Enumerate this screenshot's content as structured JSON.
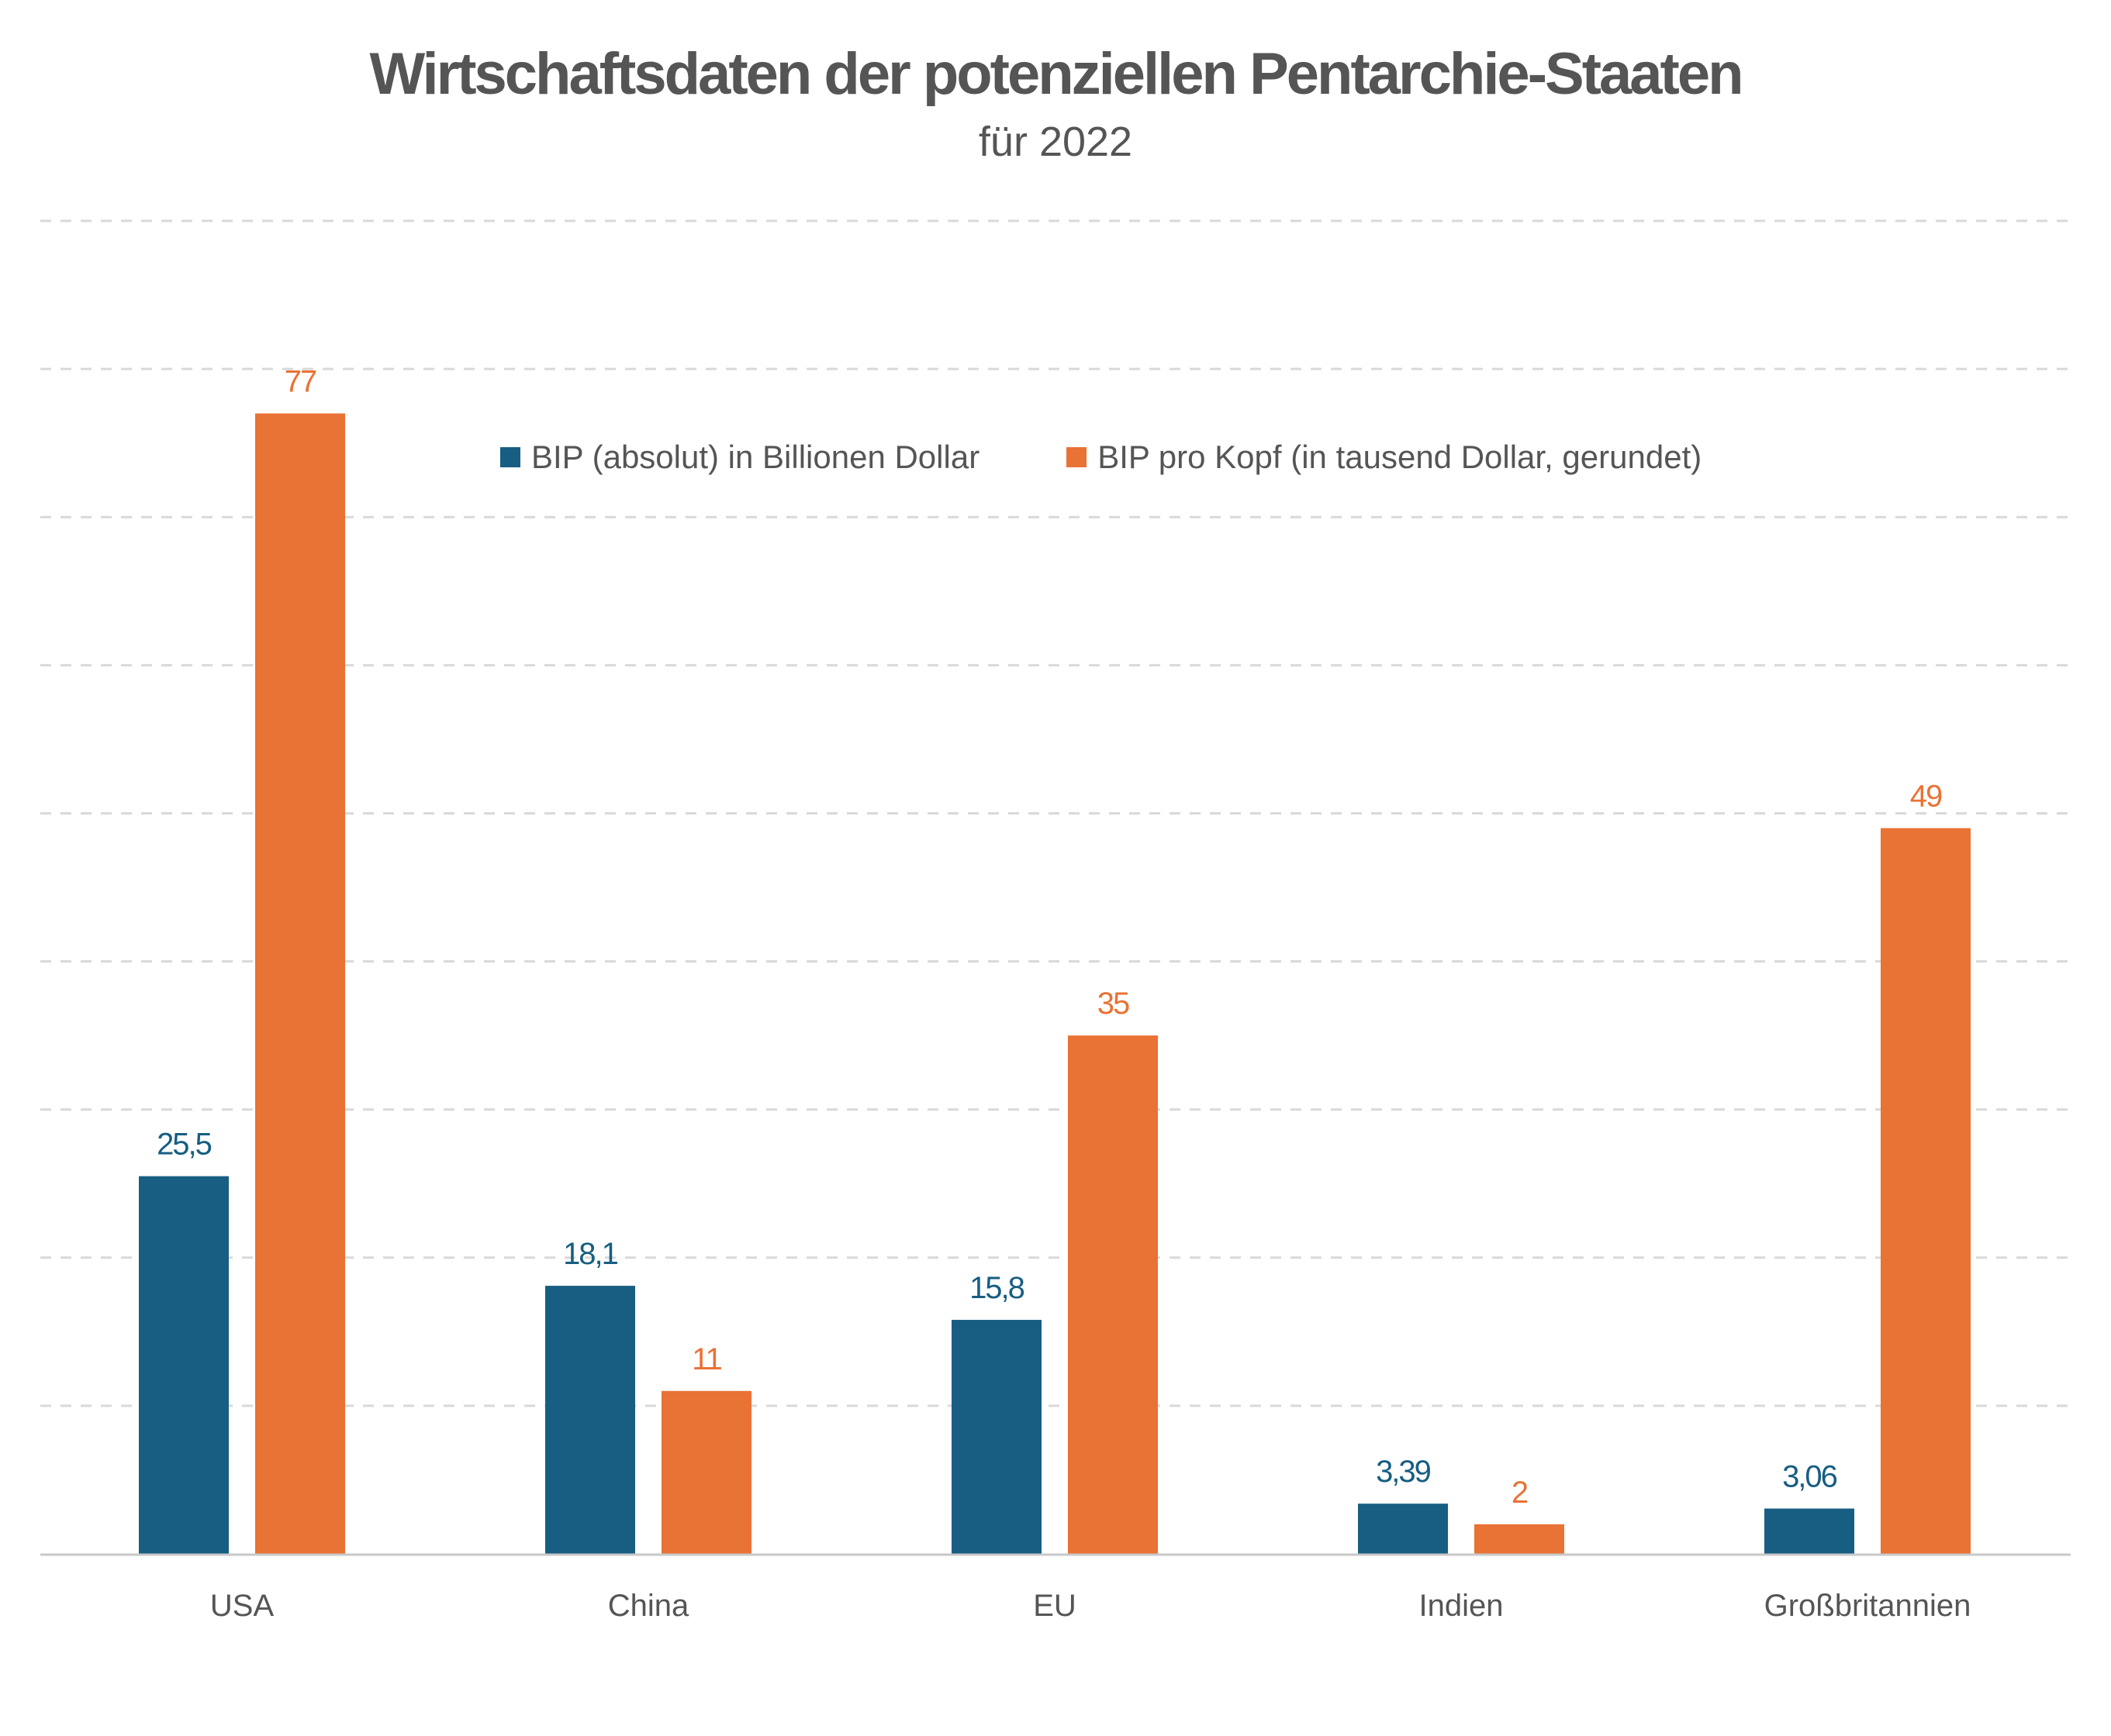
{
  "chart_data": {
    "type": "bar",
    "title": "Wirtschaftsdaten der potenziellen Pentarchie-Staaten",
    "subtitle": "für 2022",
    "categories": [
      "USA",
      "China",
      "EU",
      "Indien",
      "Großbritannien"
    ],
    "series": [
      {
        "name": "BIP (absolut) in Billionen Dollar",
        "values": [
          25.5,
          18.1,
          15.8,
          3.39,
          3.06
        ],
        "labels": [
          "25,5",
          "18,1",
          "15,8",
          "3,39",
          "3,06"
        ],
        "color": "#175e82"
      },
      {
        "name": "BIP pro Kopf (in tausend Dollar, gerundet)",
        "values": [
          77,
          11,
          35,
          2,
          49
        ],
        "labels": [
          "77",
          "11",
          "35",
          "2",
          "49"
        ],
        "color": "#e97235"
      }
    ],
    "xlabel": "",
    "ylabel": "",
    "ylim": [
      0,
      90
    ],
    "ytick_step": 10,
    "grid": true,
    "legend_position": "top-center",
    "axis_color": "#c8c8c8",
    "grid_color": "#d9d9d9",
    "text_color": "#555555"
  }
}
